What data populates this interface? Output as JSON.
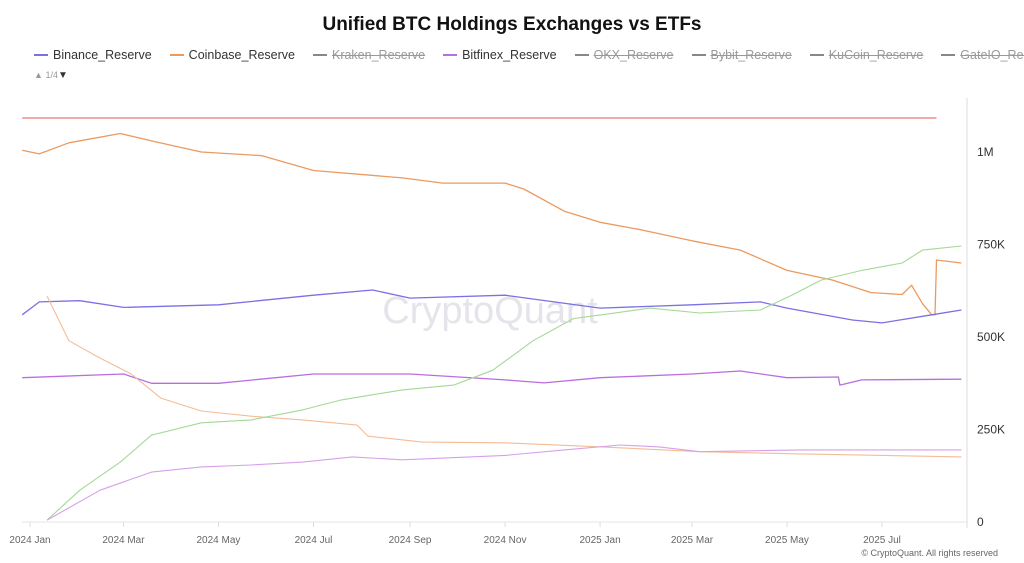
{
  "chart_data": {
    "type": "line",
    "title": "Unified BTC Holdings Exchanges vs ETFs",
    "legend_page": "1/4",
    "legend_placement": "top",
    "legend": [
      {
        "name": "Binance_Reserve",
        "color": "#7b70e4",
        "visible": true
      },
      {
        "name": "Coinbase_Reserve",
        "color": "#eb9a60",
        "visible": true
      },
      {
        "name": "Kraken_Reserve",
        "color": "#888888",
        "visible": false
      },
      {
        "name": "Bitfinex_Reserve",
        "color": "#b96ee0",
        "visible": true
      },
      {
        "name": "OKX_Reserve",
        "color": "#888888",
        "visible": false
      },
      {
        "name": "Bybit_Reserve",
        "color": "#888888",
        "visible": false
      },
      {
        "name": "KuCoin_Reserve",
        "color": "#888888",
        "visible": false
      },
      {
        "name": "GateIO_Reserve",
        "color": "#888888",
        "visible": false
      }
    ],
    "x_ticks": [
      "2024 Jan",
      "2024 Mar",
      "2024 May",
      "2024 Jul",
      "2024 Sep",
      "2024 Nov",
      "2025 Jan",
      "2025 Mar",
      "2025 May",
      "2025 Jul"
    ],
    "x_tick_dates": [
      "2024-01-01",
      "2024-03-01",
      "2024-05-01",
      "2024-07-01",
      "2024-09-01",
      "2024-11-01",
      "2025-01-01",
      "2025-03-01",
      "2025-05-01",
      "2025-07-01"
    ],
    "xlim": [
      "2023-12-22",
      "2025-08-27"
    ],
    "y_ticks": [
      "0",
      "250K",
      "500K",
      "750K",
      "1M"
    ],
    "y_tick_values": [
      0,
      250000,
      500000,
      750000,
      1000000
    ],
    "ylim": [
      0,
      1140000
    ],
    "y_axis_side": "right",
    "grid": false,
    "series": [
      {
        "name": "Coinbase_Reserve",
        "color": "#eb9a60",
        "width": 1.3,
        "points": [
          [
            "2023-12-27",
            1005000
          ],
          [
            "2024-01-07",
            995000
          ],
          [
            "2024-01-26",
            1025000
          ],
          [
            "2024-02-28",
            1050000
          ],
          [
            "2024-03-19",
            1030000
          ],
          [
            "2024-04-20",
            1000000
          ],
          [
            "2024-05-29",
            990000
          ],
          [
            "2024-07-01",
            950000
          ],
          [
            "2024-08-27",
            930000
          ],
          [
            "2024-09-22",
            916000
          ],
          [
            "2024-11-01",
            916000
          ],
          [
            "2024-11-13",
            900000
          ],
          [
            "2024-12-09",
            840000
          ],
          [
            "2025-01-01",
            810000
          ],
          [
            "2025-01-27",
            790000
          ],
          [
            "2025-03-01",
            760000
          ],
          [
            "2025-04-01",
            735000
          ],
          [
            "2025-05-01",
            680000
          ],
          [
            "2025-05-30",
            654000
          ],
          [
            "2025-06-24",
            620000
          ],
          [
            "2025-07-14",
            615000
          ],
          [
            "2025-07-20",
            640000
          ],
          [
            "2025-07-27",
            590000
          ],
          [
            "2025-08-02",
            560000
          ],
          [
            "2025-08-04",
            560000
          ],
          [
            "2025-08-05",
            708000
          ],
          [
            "2025-08-21",
            700000
          ]
        ]
      },
      {
        "name": "Binance_Reserve",
        "color": "#7b70e4",
        "width": 1.3,
        "points": [
          [
            "2023-12-27",
            560000
          ],
          [
            "2024-01-07",
            595000
          ],
          [
            "2024-02-02",
            598000
          ],
          [
            "2024-03-01",
            580000
          ],
          [
            "2024-05-01",
            587000
          ],
          [
            "2024-07-01",
            613000
          ],
          [
            "2024-08-08",
            627000
          ],
          [
            "2024-09-01",
            605000
          ],
          [
            "2024-11-01",
            613000
          ],
          [
            "2025-01-01",
            578000
          ],
          [
            "2025-03-01",
            587000
          ],
          [
            "2025-04-14",
            595000
          ],
          [
            "2025-05-01",
            578000
          ],
          [
            "2025-06-12",
            546000
          ],
          [
            "2025-07-01",
            538000
          ],
          [
            "2025-08-02",
            560000
          ],
          [
            "2025-08-21",
            573000
          ]
        ]
      },
      {
        "name": "Bitfinex_Reserve",
        "color": "#b96ee0",
        "width": 1.3,
        "points": [
          [
            "2023-12-27",
            390000
          ],
          [
            "2024-03-01",
            400000
          ],
          [
            "2024-03-19",
            375000
          ],
          [
            "2024-05-01",
            375000
          ],
          [
            "2024-07-01",
            400000
          ],
          [
            "2024-09-01",
            400000
          ],
          [
            "2024-11-01",
            384000
          ],
          [
            "2024-11-26",
            376000
          ],
          [
            "2025-01-01",
            390000
          ],
          [
            "2025-03-01",
            400000
          ],
          [
            "2025-04-01",
            408000
          ],
          [
            "2025-05-01",
            390000
          ],
          [
            "2025-06-03",
            392000
          ],
          [
            "2025-06-04",
            370000
          ],
          [
            "2025-06-18",
            384000
          ],
          [
            "2025-08-21",
            386000
          ]
        ]
      },
      {
        "color": "#f4bc98",
        "width": 1.1,
        "points": [
          [
            "2024-01-12",
            610000
          ],
          [
            "2024-01-26",
            490000
          ],
          [
            "2024-02-15",
            443000
          ],
          [
            "2024-03-06",
            400000
          ],
          [
            "2024-03-25",
            335000
          ],
          [
            "2024-04-20",
            300000
          ],
          [
            "2024-05-22",
            286000
          ],
          [
            "2024-06-24",
            276000
          ],
          [
            "2024-07-29",
            262000
          ],
          [
            "2024-08-05",
            232000
          ],
          [
            "2024-09-09",
            216000
          ],
          [
            "2024-11-01",
            214000
          ],
          [
            "2025-01-02",
            203000
          ],
          [
            "2025-03-06",
            190000
          ],
          [
            "2025-05-10",
            184000
          ],
          [
            "2025-08-21",
            176000
          ]
        ]
      },
      {
        "color": "#a4d896",
        "width": 1.1,
        "points": [
          [
            "2024-01-12",
            5000
          ],
          [
            "2024-02-02",
            86000
          ],
          [
            "2024-02-28",
            162000
          ],
          [
            "2024-03-19",
            235000
          ],
          [
            "2024-04-20",
            268000
          ],
          [
            "2024-05-22",
            276000
          ],
          [
            "2024-06-24",
            303000
          ],
          [
            "2024-07-19",
            330000
          ],
          [
            "2024-08-27",
            357000
          ],
          [
            "2024-09-29",
            370000
          ],
          [
            "2024-10-24",
            410000
          ],
          [
            "2024-11-19",
            490000
          ],
          [
            "2024-12-15",
            550000
          ],
          [
            "2025-01-02",
            560000
          ],
          [
            "2025-02-02",
            578000
          ],
          [
            "2025-03-06",
            565000
          ],
          [
            "2025-04-14",
            573000
          ],
          [
            "2025-05-04",
            613000
          ],
          [
            "2025-05-23",
            654000
          ],
          [
            "2025-06-18",
            680000
          ],
          [
            "2025-07-14",
            700000
          ],
          [
            "2025-07-27",
            735000
          ],
          [
            "2025-08-21",
            746000
          ]
        ]
      },
      {
        "color": "#d6a0ea",
        "width": 1.1,
        "points": [
          [
            "2024-01-12",
            5000
          ],
          [
            "2024-02-15",
            86000
          ],
          [
            "2024-03-19",
            135000
          ],
          [
            "2024-04-20",
            149000
          ],
          [
            "2024-05-22",
            154000
          ],
          [
            "2024-06-24",
            162000
          ],
          [
            "2024-07-26",
            176000
          ],
          [
            "2024-08-27",
            168000
          ],
          [
            "2024-11-01",
            180000
          ],
          [
            "2024-12-09",
            195000
          ],
          [
            "2025-01-14",
            208000
          ],
          [
            "2025-02-08",
            203000
          ],
          [
            "2025-03-06",
            190000
          ],
          [
            "2025-05-10",
            195000
          ],
          [
            "2025-08-21",
            195000
          ]
        ]
      },
      {
        "color": "#e87878",
        "width": 1.3,
        "points": [
          [
            "2023-12-27",
            1092000
          ],
          [
            "2025-08-05",
            1092000
          ]
        ]
      }
    ]
  },
  "watermark": "CryptoQuant",
  "credit": "© CryptoQuant. All rights reserved"
}
